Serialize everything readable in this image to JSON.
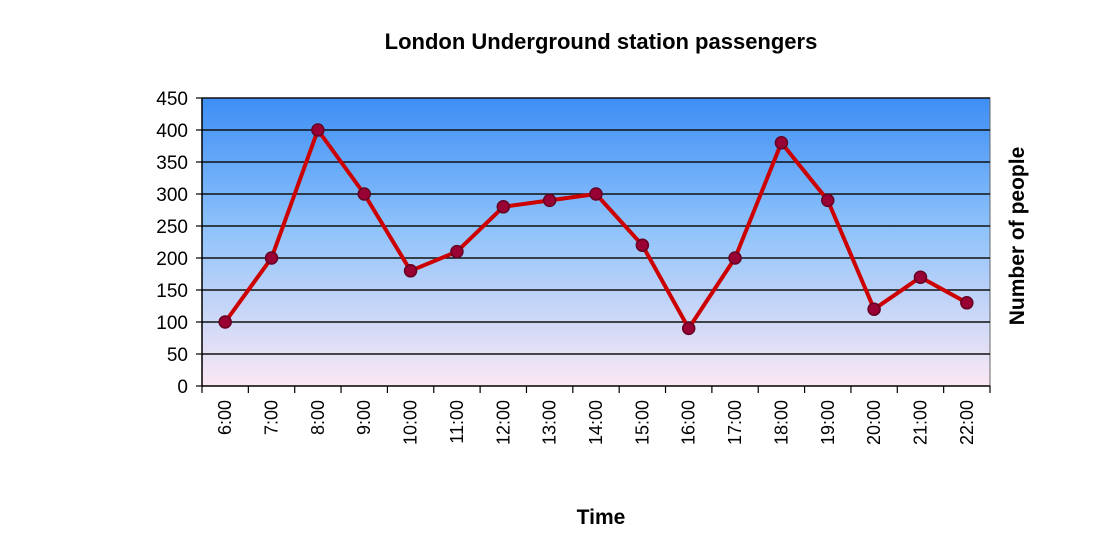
{
  "chart_data": {
    "type": "line",
    "title": "London Underground station passengers",
    "xlabel": "Time",
    "ylabel": "Number of people",
    "categories": [
      "6:00",
      "7:00",
      "8:00",
      "9:00",
      "10:00",
      "11:00",
      "12:00",
      "13:00",
      "14:00",
      "15:00",
      "16:00",
      "17:00",
      "18:00",
      "19:00",
      "20:00",
      "21:00",
      "22:00"
    ],
    "series": [
      {
        "values": [
          100,
          200,
          400,
          300,
          180,
          210,
          280,
          290,
          300,
          220,
          90,
          200,
          380,
          290,
          120,
          170,
          130
        ]
      }
    ],
    "ylim": [
      0,
      450
    ],
    "yticks": [
      "0",
      "50",
      "100",
      "150",
      "200",
      "250",
      "300",
      "350",
      "400",
      "450"
    ],
    "grid": true,
    "legend": "none",
    "colors": {
      "line": "#cc0000",
      "marker": "#990033",
      "marker_edge": "#660022",
      "plot_top": "#3d8ef5",
      "plot_bottom": "#fbe8f4",
      "grid": "#111111"
    }
  }
}
